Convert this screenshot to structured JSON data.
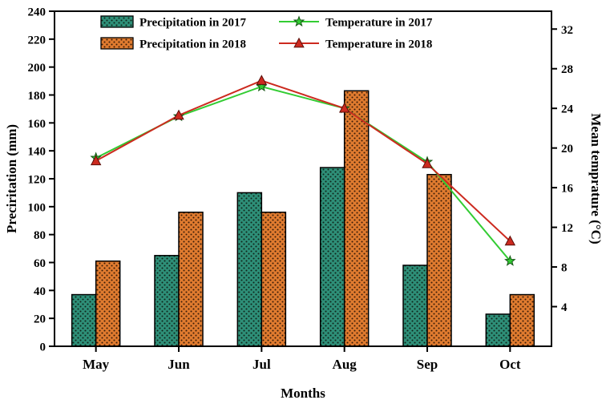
{
  "chart_data": {
    "type": "bar+line",
    "categories": [
      "May",
      "Jun",
      "Jul",
      "Aug",
      "Sep",
      "Oct"
    ],
    "bar_series": [
      {
        "name": "Precipitation in 2017",
        "axis": "left",
        "values": [
          37,
          65,
          110,
          128,
          58,
          23
        ],
        "fill": "#2e8f78",
        "pattern_dot": "#10241a"
      },
      {
        "name": "Precipitation in 2018",
        "axis": "left",
        "values": [
          61,
          96,
          96,
          183,
          123,
          37
        ],
        "fill": "#e07b2f",
        "pattern_dot": "#3a1c08"
      }
    ],
    "line_series": [
      {
        "name": "Temperature in 2017",
        "axis": "right",
        "values": [
          19.0,
          23.2,
          26.2,
          24.0,
          18.6,
          8.6
        ],
        "color": "#33cc33",
        "marker": "star",
        "marker_edge": "#145214"
      },
      {
        "name": "Temperature in 2018",
        "axis": "right",
        "values": [
          18.7,
          23.3,
          26.8,
          24.0,
          18.4,
          10.6
        ],
        "color": "#cc2a1f",
        "marker": "triangle",
        "marker_edge": "#5a0f0a"
      }
    ],
    "xlabel": "Months",
    "ylabel_left": "Preciritation (mm)",
    "ylabel_right": "Mean temprature (°C)",
    "ylim_left": [
      0,
      240
    ],
    "ytick_step_left": 20,
    "ylim_right": [
      0,
      33.8
    ],
    "yticks_right": [
      4,
      8,
      12,
      16,
      20,
      24,
      28,
      32
    ],
    "grid": false,
    "legend_position": "top-inside",
    "axis_color": "#000000",
    "bar_edge_color": "#000000"
  }
}
